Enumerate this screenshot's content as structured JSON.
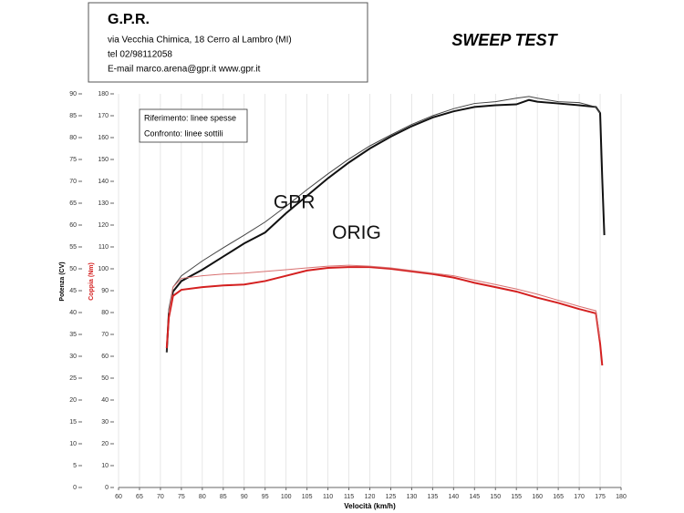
{
  "header": {
    "company": "G.P.R.",
    "address": "via Vecchia Chimica, 18 Cerro al Lambro (MI)",
    "phone": "tel 02/98112058",
    "email": "E-mail marco.arena@gpr.it  www.gpr.it",
    "test_name": "SWEEP TEST"
  },
  "chart_data": {
    "type": "line",
    "xlabel": "Velocità (km/h)",
    "ylabel": "Potenza (CV)",
    "y2label": "Coppia (Nm)",
    "legend_box": [
      "Riferimento: linee spesse",
      "Confronto: linee sottili"
    ],
    "annotations": [
      {
        "text": "GPR",
        "x": 97,
        "y": 65
      },
      {
        "text": "ORIG",
        "x": 111,
        "y": 58
      }
    ],
    "xlim": [
      60,
      180
    ],
    "xticks": [
      60,
      65,
      70,
      75,
      80,
      85,
      90,
      95,
      100,
      105,
      110,
      115,
      120,
      125,
      130,
      135,
      140,
      145,
      150,
      155,
      160,
      165,
      170,
      175,
      180
    ],
    "ylim": [
      0,
      90
    ],
    "yticks": [
      0,
      5,
      10,
      15,
      20,
      25,
      30,
      35,
      40,
      45,
      50,
      55,
      60,
      65,
      70,
      75,
      80,
      85,
      90
    ],
    "y2lim": [
      0,
      180
    ],
    "y2ticks": [
      0,
      10,
      20,
      30,
      40,
      50,
      60,
      70,
      80,
      90,
      100,
      110,
      120,
      130,
      140,
      150,
      160,
      170,
      180
    ],
    "grid": true,
    "series": [
      {
        "color": "#111111",
        "width": 2,
        "x": [
          71.5,
          72,
          73,
          75,
          80,
          85,
          90,
          95,
          100,
          105,
          110,
          115,
          120,
          125,
          130,
          135,
          140,
          145,
          150,
          155,
          158,
          160,
          165,
          170,
          174,
          175,
          175.5,
          176
        ],
        "values": [
          30.9,
          39.8,
          44.8,
          47.2,
          49.8,
          52.8,
          55.8,
          58.3,
          62.7,
          66.7,
          70.7,
          74.3,
          77.5,
          80.2,
          82.6,
          84.6,
          86.0,
          87.0,
          87.4,
          87.6,
          88.6,
          88.2,
          87.8,
          87.4,
          87.0,
          85.6,
          70.7,
          57.7
        ]
      },
      {
        "color": "#444444",
        "width": 1,
        "x": [
          71.5,
          72,
          73,
          75,
          80,
          85,
          90,
          95,
          100,
          105,
          110,
          115,
          120,
          125,
          130,
          135,
          140,
          145,
          150,
          155,
          158,
          160,
          165,
          170,
          174,
          175
        ],
        "values": [
          31,
          40.8,
          45.8,
          48.4,
          51.8,
          54.8,
          57.7,
          60.7,
          64.3,
          68.1,
          71.7,
          75.1,
          78.1,
          80.6,
          83.0,
          85.0,
          86.6,
          87.8,
          88.2,
          89.0,
          89.4,
          89.0,
          88.2,
          88.0,
          87.0,
          85.6
        ]
      },
      {
        "color": "#d42020",
        "width": 2,
        "axis": "y2",
        "x": [
          71.5,
          72,
          73,
          75,
          80,
          85,
          90,
          95,
          100,
          105,
          110,
          115,
          120,
          125,
          130,
          135,
          140,
          145,
          150,
          155,
          160,
          165,
          170,
          174,
          175,
          175.5
        ],
        "values": [
          63.7,
          77.7,
          87.6,
          90.4,
          91.6,
          92.4,
          92.8,
          94.4,
          96.8,
          99.2,
          100.4,
          100.8,
          100.8,
          100.0,
          98.8,
          97.6,
          96.0,
          93.6,
          91.6,
          89.6,
          86.8,
          84.4,
          81.6,
          79.6,
          65.7,
          55.8
        ]
      },
      {
        "color": "#d87070",
        "width": 1,
        "axis": "y2",
        "x": [
          72,
          73,
          75,
          80,
          85,
          90,
          95,
          100,
          105,
          110,
          115,
          120,
          125,
          130,
          135,
          140,
          145,
          150,
          155,
          160,
          165,
          170,
          174,
          175
        ],
        "values": [
          79.6,
          91.6,
          95.6,
          96.8,
          97.6,
          98.0,
          98.8,
          99.6,
          100.4,
          101.2,
          101.6,
          101.2,
          100.4,
          99.2,
          98.0,
          96.8,
          94.8,
          92.8,
          90.8,
          88.4,
          85.6,
          82.8,
          80.8,
          67.7
        ]
      }
    ]
  }
}
